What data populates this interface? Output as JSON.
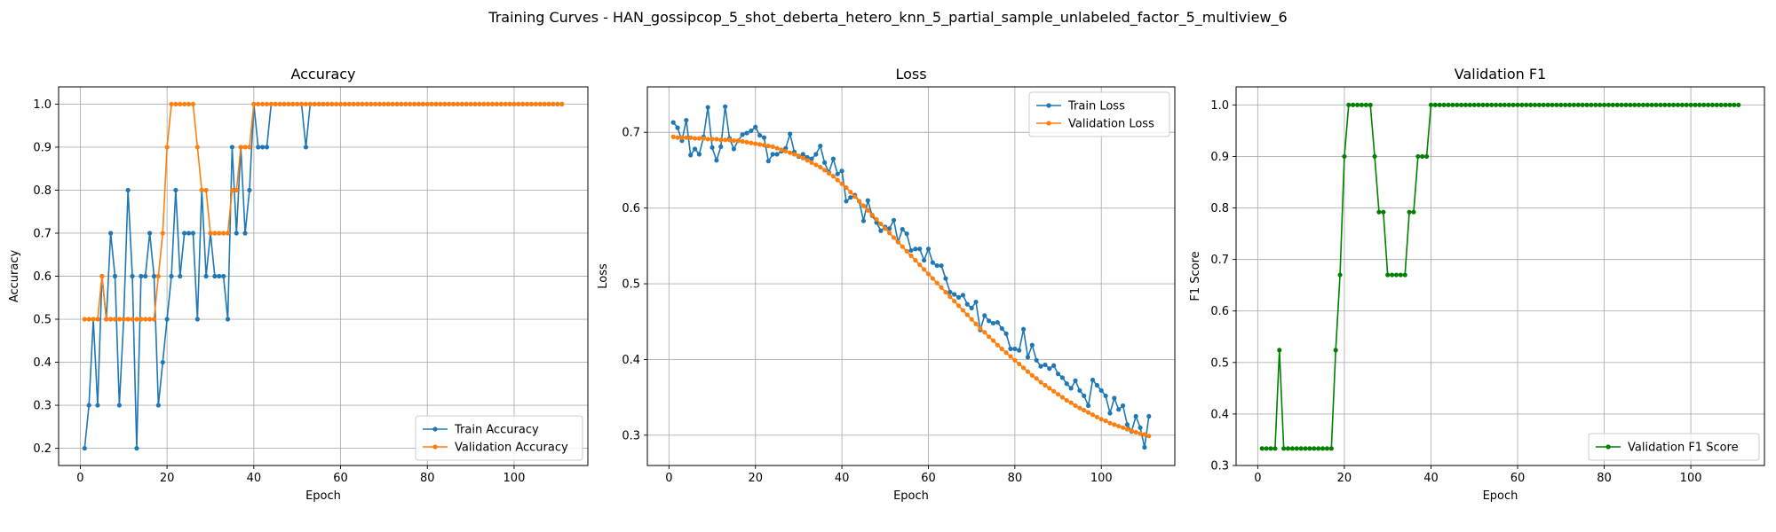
{
  "figure": {
    "suptitle": "Training Curves - HAN_gossipcop_5_shot_deberta_hetero_knn_5_partial_sample_unlabeled_factor_5_multiview_6"
  },
  "colors": {
    "train": "#1f77b4",
    "validation": "#ff7f0e",
    "f1": "#008000",
    "grid": "#b0b0b0"
  },
  "chart_data": [
    {
      "type": "line",
      "title": "Accuracy",
      "xlabel": "Epoch",
      "ylabel": "Accuracy",
      "xlim": [
        -5,
        117
      ],
      "ylim": [
        0.16,
        1.04
      ],
      "xticks": [
        0,
        20,
        40,
        60,
        80,
        100
      ],
      "yticks": [
        0.2,
        0.3,
        0.4,
        0.5,
        0.6,
        0.7,
        0.8,
        0.9,
        1.0
      ],
      "grid": true,
      "legend": "lower right",
      "series": [
        {
          "name": "Train Accuracy",
          "color_key": "train",
          "x_start": 1,
          "values": [
            0.2,
            0.3,
            0.5,
            0.3,
            0.6,
            0.5,
            0.7,
            0.6,
            0.3,
            0.5,
            0.8,
            0.6,
            0.2,
            0.6,
            0.6,
            0.7,
            0.6,
            0.3,
            0.4,
            0.5,
            0.6,
            0.8,
            0.6,
            0.7,
            0.7,
            0.7,
            0.5,
            0.8,
            0.6,
            0.7,
            0.6,
            0.6,
            0.6,
            0.5,
            0.9,
            0.7,
            0.9,
            0.7,
            0.8,
            1.0,
            0.9,
            0.9,
            0.9,
            1.0,
            1.0,
            1.0,
            1.0,
            1.0,
            1.0,
            1.0,
            1.0,
            0.9,
            1.0,
            1.0,
            1.0,
            1.0,
            1.0,
            1.0,
            1.0,
            1.0,
            1.0,
            1.0,
            1.0,
            1.0,
            1.0,
            1.0,
            1.0,
            1.0,
            1.0,
            1.0,
            1.0,
            1.0,
            1.0,
            1.0,
            1.0,
            1.0,
            1.0,
            1.0,
            1.0,
            1.0,
            1.0,
            1.0,
            1.0,
            1.0,
            1.0,
            1.0,
            1.0,
            1.0,
            1.0,
            1.0,
            1.0,
            1.0,
            1.0,
            1.0,
            1.0,
            1.0,
            1.0,
            1.0,
            1.0,
            1.0,
            1.0,
            1.0,
            1.0,
            1.0,
            1.0,
            1.0,
            1.0,
            1.0,
            1.0,
            1.0,
            1.0
          ]
        },
        {
          "name": "Validation Accuracy",
          "color_key": "validation",
          "x_start": 1,
          "values": [
            0.5,
            0.5,
            0.5,
            0.5,
            0.6,
            0.5,
            0.5,
            0.5,
            0.5,
            0.5,
            0.5,
            0.5,
            0.5,
            0.5,
            0.5,
            0.5,
            0.5,
            0.6,
            0.7,
            0.9,
            1.0,
            1.0,
            1.0,
            1.0,
            1.0,
            1.0,
            0.9,
            0.8,
            0.8,
            0.7,
            0.7,
            0.7,
            0.7,
            0.7,
            0.8,
            0.8,
            0.9,
            0.9,
            0.9,
            1.0,
            1.0,
            1.0,
            1.0,
            1.0,
            1.0,
            1.0,
            1.0,
            1.0,
            1.0,
            1.0,
            1.0,
            1.0,
            1.0,
            1.0,
            1.0,
            1.0,
            1.0,
            1.0,
            1.0,
            1.0,
            1.0,
            1.0,
            1.0,
            1.0,
            1.0,
            1.0,
            1.0,
            1.0,
            1.0,
            1.0,
            1.0,
            1.0,
            1.0,
            1.0,
            1.0,
            1.0,
            1.0,
            1.0,
            1.0,
            1.0,
            1.0,
            1.0,
            1.0,
            1.0,
            1.0,
            1.0,
            1.0,
            1.0,
            1.0,
            1.0,
            1.0,
            1.0,
            1.0,
            1.0,
            1.0,
            1.0,
            1.0,
            1.0,
            1.0,
            1.0,
            1.0,
            1.0,
            1.0,
            1.0,
            1.0,
            1.0,
            1.0,
            1.0,
            1.0,
            1.0,
            1.0
          ]
        }
      ]
    },
    {
      "type": "line",
      "title": "Loss",
      "xlabel": "Epoch",
      "ylabel": "Loss",
      "xlim": [
        -5,
        117
      ],
      "ylim": [
        0.26,
        0.76
      ],
      "xticks": [
        0,
        20,
        40,
        60,
        80,
        100
      ],
      "yticks": [
        0.3,
        0.4,
        0.5,
        0.6,
        0.7
      ],
      "grid": true,
      "legend": "upper right",
      "series": [
        {
          "name": "Train Loss",
          "color_key": "train",
          "x_start": 1,
          "values": [
            0.713,
            0.706,
            0.689,
            0.716,
            0.67,
            0.678,
            0.671,
            0.694,
            0.733,
            0.68,
            0.663,
            0.681,
            0.734,
            0.692,
            0.678,
            0.689,
            0.697,
            0.699,
            0.702,
            0.707,
            0.696,
            0.693,
            0.662,
            0.671,
            0.671,
            0.675,
            0.679,
            0.698,
            0.674,
            0.668,
            0.671,
            0.667,
            0.665,
            0.671,
            0.682,
            0.66,
            0.647,
            0.665,
            0.645,
            0.649,
            0.609,
            0.614,
            0.617,
            0.609,
            0.583,
            0.61,
            0.59,
            0.581,
            0.57,
            0.575,
            0.573,
            0.584,
            0.555,
            0.572,
            0.566,
            0.544,
            0.546,
            0.546,
            0.531,
            0.546,
            0.528,
            0.524,
            0.524,
            0.507,
            0.489,
            0.486,
            0.482,
            0.485,
            0.473,
            0.468,
            0.476,
            0.439,
            0.458,
            0.451,
            0.448,
            0.449,
            0.441,
            0.434,
            0.414,
            0.414,
            0.412,
            0.44,
            0.403,
            0.419,
            0.399,
            0.391,
            0.393,
            0.388,
            0.392,
            0.381,
            0.376,
            0.368,
            0.362,
            0.372,
            0.359,
            0.352,
            0.339,
            0.373,
            0.366,
            0.359,
            0.352,
            0.329,
            0.349,
            0.334,
            0.339,
            0.314,
            0.305,
            0.325,
            0.31,
            0.284,
            0.325
          ]
        },
        {
          "name": "Validation Loss",
          "color_key": "validation",
          "x_start": 1,
          "values": [
            0.694,
            0.693,
            0.693,
            0.693,
            0.693,
            0.692,
            0.692,
            0.692,
            0.691,
            0.691,
            0.691,
            0.69,
            0.69,
            0.69,
            0.689,
            0.689,
            0.688,
            0.687,
            0.686,
            0.685,
            0.684,
            0.683,
            0.682,
            0.681,
            0.679,
            0.677,
            0.675,
            0.673,
            0.671,
            0.669,
            0.666,
            0.663,
            0.66,
            0.657,
            0.654,
            0.65,
            0.646,
            0.642,
            0.637,
            0.632,
            0.627,
            0.621,
            0.615,
            0.609,
            0.603,
            0.597,
            0.591,
            0.585,
            0.579,
            0.573,
            0.567,
            0.561,
            0.555,
            0.549,
            0.543,
            0.537,
            0.531,
            0.525,
            0.519,
            0.513,
            0.507,
            0.501,
            0.495,
            0.489,
            0.483,
            0.477,
            0.471,
            0.465,
            0.459,
            0.453,
            0.447,
            0.441,
            0.436,
            0.43,
            0.425,
            0.419,
            0.414,
            0.409,
            0.404,
            0.399,
            0.394,
            0.389,
            0.384,
            0.379,
            0.375,
            0.37,
            0.366,
            0.362,
            0.358,
            0.354,
            0.35,
            0.346,
            0.343,
            0.339,
            0.336,
            0.333,
            0.33,
            0.327,
            0.324,
            0.321,
            0.319,
            0.316,
            0.314,
            0.312,
            0.31,
            0.308,
            0.306,
            0.304,
            0.302,
            0.301,
            0.299
          ]
        }
      ]
    },
    {
      "type": "line",
      "title": "Validation F1",
      "xlabel": "Epoch",
      "ylabel": "F1 Score",
      "xlim": [
        -5,
        117
      ],
      "ylim": [
        0.3,
        1.035
      ],
      "xticks": [
        0,
        20,
        40,
        60,
        80,
        100
      ],
      "yticks": [
        0.3,
        0.4,
        0.5,
        0.6,
        0.7,
        0.8,
        0.9,
        1.0
      ],
      "grid": true,
      "legend": "lower right",
      "series": [
        {
          "name": "Validation F1 Score",
          "color_key": "f1",
          "x_start": 1,
          "values": [
            0.333,
            0.333,
            0.333,
            0.333,
            0.524,
            0.333,
            0.333,
            0.333,
            0.333,
            0.333,
            0.333,
            0.333,
            0.333,
            0.333,
            0.333,
            0.333,
            0.333,
            0.524,
            0.67,
            0.9,
            1.0,
            1.0,
            1.0,
            1.0,
            1.0,
            1.0,
            0.9,
            0.792,
            0.792,
            0.67,
            0.67,
            0.67,
            0.67,
            0.67,
            0.792,
            0.792,
            0.9,
            0.9,
            0.9,
            1.0,
            1.0,
            1.0,
            1.0,
            1.0,
            1.0,
            1.0,
            1.0,
            1.0,
            1.0,
            1.0,
            1.0,
            1.0,
            1.0,
            1.0,
            1.0,
            1.0,
            1.0,
            1.0,
            1.0,
            1.0,
            1.0,
            1.0,
            1.0,
            1.0,
            1.0,
            1.0,
            1.0,
            1.0,
            1.0,
            1.0,
            1.0,
            1.0,
            1.0,
            1.0,
            1.0,
            1.0,
            1.0,
            1.0,
            1.0,
            1.0,
            1.0,
            1.0,
            1.0,
            1.0,
            1.0,
            1.0,
            1.0,
            1.0,
            1.0,
            1.0,
            1.0,
            1.0,
            1.0,
            1.0,
            1.0,
            1.0,
            1.0,
            1.0,
            1.0,
            1.0,
            1.0,
            1.0,
            1.0,
            1.0,
            1.0,
            1.0,
            1.0,
            1.0,
            1.0,
            1.0,
            1.0
          ]
        }
      ]
    }
  ]
}
